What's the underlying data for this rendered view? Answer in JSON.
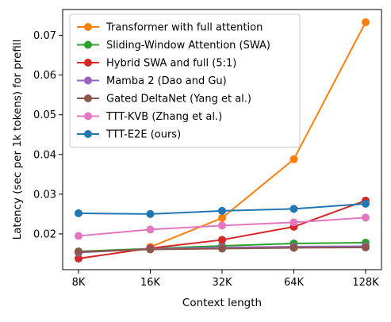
{
  "chart_data": {
    "type": "line",
    "title": "",
    "xlabel": "Context length",
    "ylabel": "Latency (sec per 1k tokens) for prefill",
    "x_scale": "log2",
    "categories": [
      "8K",
      "16K",
      "32K",
      "64K",
      "128K"
    ],
    "xticks": [
      "8K",
      "16K",
      "32K",
      "64K",
      "128K"
    ],
    "ylim": [
      0.011,
      0.0765
    ],
    "yticks": [
      "0.02",
      "0.03",
      "0.04",
      "0.05",
      "0.06",
      "0.07"
    ],
    "ytick_values": [
      0.02,
      0.03,
      0.04,
      0.05,
      0.06,
      0.07
    ],
    "grid": false,
    "legend_position": "top-left",
    "series": [
      {
        "name": "Transformer with full attention",
        "color": "#ff7f0e",
        "values": [
          null,
          0.0167,
          0.024,
          0.0388,
          0.0733
        ]
      },
      {
        "name": "Sliding-Window Attention (SWA)",
        "color": "#2ca02c",
        "values": [
          0.0156,
          0.0163,
          0.017,
          0.0176,
          0.0178
        ]
      },
      {
        "name": "Hybrid SWA and full (5:1)",
        "color": "#d62728",
        "values": [
          0.0138,
          0.0164,
          0.0185,
          0.0218,
          0.0284
        ]
      },
      {
        "name": "Mamba 2 (Dao and Gu)",
        "color": "#9467bd",
        "values": [
          0.0153,
          0.0162,
          0.0166,
          0.0168,
          0.0169
        ]
      },
      {
        "name": "Gated DeltaNet (Yang et al.)",
        "color": "#8c564b",
        "values": [
          0.0155,
          0.0161,
          0.0163,
          0.0165,
          0.0166
        ]
      },
      {
        "name": "TTT-KVB (Zhang et al.)",
        "color": "#e377c2",
        "values": [
          0.0195,
          0.0211,
          0.0221,
          0.0229,
          0.0241
        ]
      },
      {
        "name": "TTT-E2E (ours)",
        "color": "#1f77b4",
        "values": [
          0.0252,
          0.025,
          0.0258,
          0.0263,
          0.0276
        ]
      }
    ]
  }
}
